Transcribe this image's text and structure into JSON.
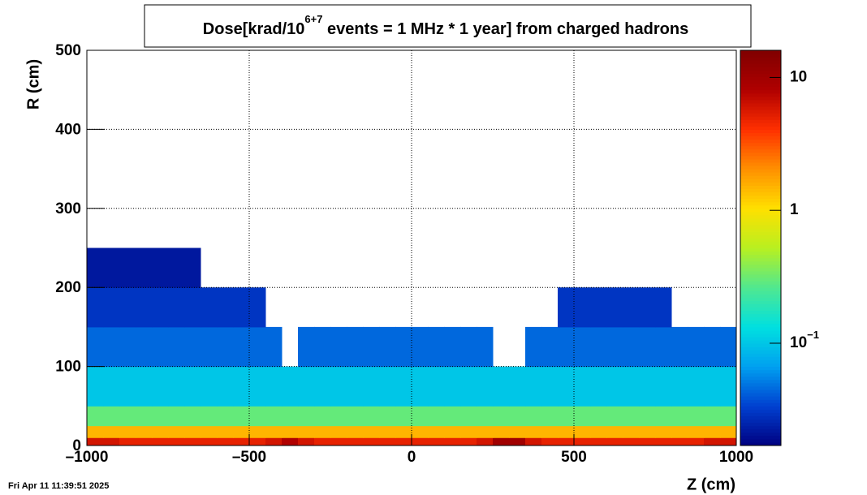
{
  "chart_data": {
    "type": "heatmap",
    "title_parts": [
      "Dose[krad/10",
      "6+7",
      " events = 1 MHz * 1 year] from charged hadrons"
    ],
    "xlabel": "Z (cm)",
    "ylabel": "R (cm)",
    "footer": "Fri Apr 11 11:39:51 2025",
    "xlim": [
      -1000,
      1000
    ],
    "xticks": [
      {
        "value": -1000,
        "label": "–1000"
      },
      {
        "value": -500,
        "label": "–500"
      },
      0,
      500,
      1000
    ],
    "ylim": [
      0,
      500
    ],
    "yticks": [
      0,
      100,
      200,
      300,
      400,
      500
    ],
    "grid": true,
    "zlim": [
      0.017,
      16
    ],
    "zscale": "log",
    "zticks": [
      {
        "value": 0.1,
        "label": "10",
        "exponent": "−1"
      },
      1,
      10
    ],
    "palette": [
      "#000080",
      "#0040d0",
      "#00a0f0",
      "#00e0e0",
      "#50e890",
      "#b8f020",
      "#ffe000",
      "#ff9000",
      "#ff3000",
      "#b00000",
      "#800000"
    ],
    "x_bins": [
      -1000,
      -950,
      -900,
      -850,
      -800,
      -750,
      -700,
      -650,
      -600,
      -550,
      -500,
      -450,
      -400,
      -350,
      -300,
      -250,
      -200,
      -150,
      -100,
      -50,
      0,
      50,
      100,
      150,
      200,
      250,
      300,
      350,
      400,
      450,
      500,
      550,
      600,
      650,
      700,
      750,
      800,
      850,
      900,
      950,
      1000
    ],
    "y_bins": [
      0,
      10,
      25,
      50,
      100,
      150,
      200,
      250
    ],
    "values": [
      [
        6,
        6,
        5,
        5,
        5,
        5,
        5,
        5,
        5,
        5,
        5,
        6,
        8,
        6,
        5,
        5,
        5,
        5,
        5,
        5,
        5,
        5,
        5,
        5,
        6,
        10,
        10,
        6,
        5,
        5,
        5,
        5,
        5,
        5,
        5,
        5,
        5,
        5,
        6,
        6
      ],
      [
        1.5,
        1.5,
        1.5,
        1.5,
        1.5,
        1.5,
        1.5,
        1.5,
        1.5,
        1.5,
        1.5,
        1.5,
        1.5,
        1.5,
        1.5,
        1.5,
        1.5,
        1.5,
        1.5,
        1.5,
        1.5,
        1.5,
        1.5,
        1.5,
        1.5,
        1.5,
        1.5,
        1.5,
        1.5,
        1.5,
        1.5,
        1.5,
        1.5,
        1.5,
        1.5,
        1.5,
        1.5,
        1.5,
        1.5,
        1.5
      ],
      [
        0.3,
        0.3,
        0.3,
        0.3,
        0.3,
        0.3,
        0.3,
        0.3,
        0.3,
        0.3,
        0.3,
        0.3,
        0.3,
        0.3,
        0.3,
        0.3,
        0.3,
        0.3,
        0.3,
        0.3,
        0.3,
        0.3,
        0.3,
        0.3,
        0.3,
        0.3,
        0.3,
        0.3,
        0.3,
        0.3,
        0.3,
        0.3,
        0.3,
        0.3,
        0.3,
        0.3,
        0.3,
        0.3,
        0.3,
        0.3
      ],
      [
        0.1,
        0.1,
        0.1,
        0.1,
        0.1,
        0.1,
        0.1,
        0.1,
        0.1,
        0.1,
        0.1,
        0.1,
        0.1,
        0.1,
        0.1,
        0.1,
        0.1,
        0.1,
        0.1,
        0.1,
        0.1,
        0.1,
        0.1,
        0.1,
        0.1,
        0.1,
        0.1,
        0.1,
        0.1,
        0.1,
        0.1,
        0.1,
        0.1,
        0.1,
        0.1,
        0.1,
        0.1,
        0.1,
        0.1,
        0.1
      ],
      [
        0.045,
        0.045,
        0.045,
        0.045,
        0.045,
        0.045,
        0.045,
        0.045,
        0.045,
        0.045,
        0.045,
        0.045,
        null,
        0.045,
        0.045,
        0.045,
        0.045,
        0.045,
        0.045,
        0.045,
        0.045,
        0.045,
        0.045,
        0.045,
        0.045,
        null,
        null,
        0.045,
        0.045,
        0.045,
        0.045,
        0.045,
        0.045,
        0.045,
        0.045,
        0.045,
        0.045,
        0.045,
        0.045,
        0.045
      ],
      [
        0.03,
        0.03,
        0.03,
        0.03,
        0.03,
        0.03,
        0.03,
        0.03,
        0.03,
        0.03,
        0.03,
        null,
        null,
        null,
        null,
        null,
        null,
        null,
        null,
        null,
        null,
        null,
        null,
        null,
        null,
        null,
        null,
        null,
        null,
        0.03,
        0.03,
        0.03,
        0.03,
        0.03,
        0.03,
        0.03,
        null,
        null,
        null,
        null
      ],
      [
        0.022,
        0.022,
        0.022,
        0.022,
        0.022,
        0.022,
        0.022,
        null,
        null,
        null,
        null,
        null,
        null,
        null,
        null,
        null,
        null,
        null,
        null,
        null,
        null,
        null,
        null,
        null,
        null,
        null,
        null,
        null,
        null,
        null,
        null,
        null,
        null,
        null,
        null,
        null,
        null,
        null,
        null,
        null
      ]
    ]
  }
}
